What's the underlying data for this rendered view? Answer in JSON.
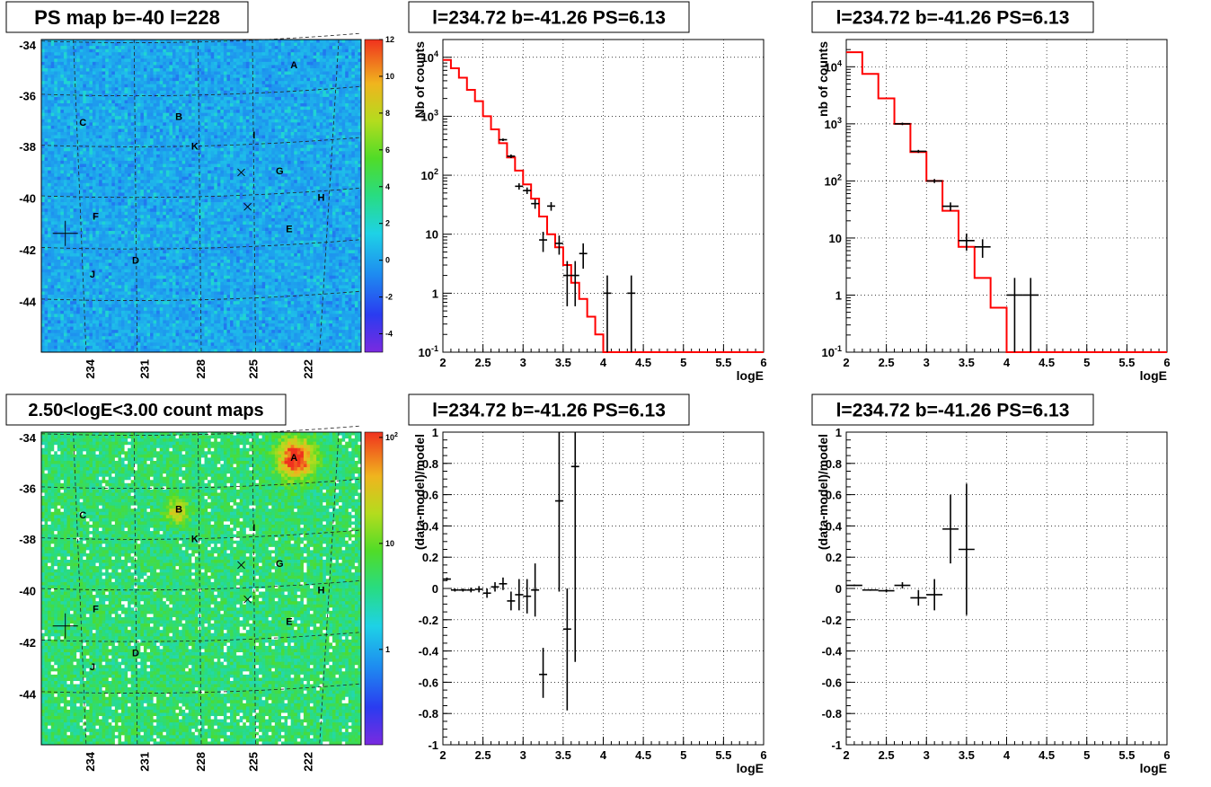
{
  "chart_data": [
    {
      "id": "map_ps",
      "type": "heatmap",
      "title": "PS map b=-40 l=228",
      "y_ticks": [
        "-34",
        "-36",
        "-38",
        "-40",
        "-42",
        "-44"
      ],
      "x_ticks": [
        "234",
        "231",
        "228",
        "225",
        "222"
      ],
      "colorbar_ticks": [
        "12",
        "10",
        "8",
        "6",
        "4",
        "2",
        "0",
        "-2",
        "-4"
      ],
      "zlim": [
        -5,
        12
      ],
      "colorbar_scale": "linear",
      "sources": [
        "A",
        "B",
        "C",
        "D",
        "E",
        "F",
        "G",
        "H",
        "I",
        "J",
        "K"
      ]
    },
    {
      "id": "spec_left",
      "type": "line",
      "title": "l=234.72 b=-41.26 PS=6.13",
      "xlabel": "logE",
      "ylabel": "Nb of counts",
      "y_scale": "log",
      "xlim": [
        2,
        6
      ],
      "ylim": [
        0.1,
        20000
      ],
      "x_ticks": [
        "2",
        "2.5",
        "3",
        "3.5",
        "4",
        "4.5",
        "5",
        "5.5",
        "6"
      ],
      "y_ticks": [
        "10^-1",
        "1",
        "10",
        "10^2",
        "10^3",
        "10^4"
      ],
      "grid": true,
      "model": {
        "bin_width": 0.1,
        "bin_starts": [
          2.0,
          2.1,
          2.2,
          2.3,
          2.4,
          2.5,
          2.6,
          2.7,
          2.8,
          2.9,
          3.0,
          3.1,
          3.2,
          3.3,
          3.4,
          3.5,
          3.6,
          3.7,
          3.8,
          3.9,
          4.0,
          4.1
        ],
        "values": [
          9000,
          6500,
          4500,
          2800,
          1800,
          1000,
          600,
          350,
          200,
          120,
          70,
          40,
          20,
          10,
          6,
          3,
          1.5,
          0.8,
          0.4,
          0.2,
          0.1,
          0.1
        ]
      },
      "data": {
        "points": [
          {
            "x": 2.75,
            "y": 400,
            "xerr": 0.05,
            "ylo": 380,
            "yhi": 420
          },
          {
            "x": 2.85,
            "y": 210,
            "xerr": 0.05,
            "ylo": 195,
            "yhi": 225
          },
          {
            "x": 2.95,
            "y": 65,
            "xerr": 0.05,
            "ylo": 57,
            "yhi": 73
          },
          {
            "x": 3.05,
            "y": 55,
            "xerr": 0.05,
            "ylo": 48,
            "yhi": 62
          },
          {
            "x": 3.15,
            "y": 33,
            "xerr": 0.05,
            "ylo": 27,
            "yhi": 39
          },
          {
            "x": 3.25,
            "y": 8,
            "xerr": 0.05,
            "ylo": 5,
            "yhi": 11
          },
          {
            "x": 3.35,
            "y": 30,
            "xerr": 0.05,
            "ylo": 25,
            "yhi": 35
          },
          {
            "x": 3.45,
            "y": 7,
            "xerr": 0.05,
            "ylo": 4.5,
            "yhi": 9.5
          },
          {
            "x": 3.55,
            "y": 2,
            "xerr": 0.05,
            "ylo": 0.6,
            "yhi": 3.5
          },
          {
            "x": 3.65,
            "y": 2,
            "xerr": 0.05,
            "ylo": 0.6,
            "yhi": 3.5
          },
          {
            "x": 3.75,
            "y": 4.7,
            "xerr": 0.05,
            "ylo": 2.6,
            "yhi": 7
          },
          {
            "x": 4.05,
            "y": 1,
            "xerr": 0.05,
            "ylo": 0.1,
            "yhi": 2
          },
          {
            "x": 4.35,
            "y": 1,
            "xerr": 0.05,
            "ylo": 0.1,
            "yhi": 2
          }
        ]
      }
    },
    {
      "id": "spec_right",
      "type": "line",
      "title": "l=234.72 b=-41.26 PS=6.13",
      "xlabel": "logE",
      "ylabel": "nb of counts",
      "y_scale": "log",
      "xlim": [
        2,
        6
      ],
      "ylim": [
        0.1,
        30000
      ],
      "x_ticks": [
        "2",
        "2.5",
        "3",
        "3.5",
        "4",
        "4.5",
        "5",
        "5.5",
        "6"
      ],
      "y_ticks": [
        "10^-1",
        "1",
        "10",
        "10^2",
        "10^3",
        "10^4"
      ],
      "grid": true,
      "model": {
        "bin_width": 0.2,
        "bin_starts": [
          2.0,
          2.2,
          2.4,
          2.6,
          2.8,
          3.0,
          3.2,
          3.4,
          3.6,
          3.8,
          4.0,
          4.2
        ],
        "values": [
          18000,
          7500,
          2800,
          1000,
          320,
          100,
          30,
          7,
          2,
          0.6,
          0.1,
          0.1
        ]
      },
      "data": {
        "points": [
          {
            "x": 2.7,
            "y": 1000,
            "xerr": 0.1,
            "ylo": 950,
            "yhi": 1050
          },
          {
            "x": 2.9,
            "y": 330,
            "xerr": 0.1,
            "ylo": 310,
            "yhi": 350
          },
          {
            "x": 3.1,
            "y": 100,
            "xerr": 0.1,
            "ylo": 92,
            "yhi": 108
          },
          {
            "x": 3.3,
            "y": 36,
            "xerr": 0.1,
            "ylo": 30,
            "yhi": 42
          },
          {
            "x": 3.5,
            "y": 9,
            "xerr": 0.1,
            "ylo": 6,
            "yhi": 12
          },
          {
            "x": 3.7,
            "y": 7,
            "xerr": 0.1,
            "ylo": 4.5,
            "yhi": 9.5
          },
          {
            "x": 4.1,
            "y": 1,
            "xerr": 0.1,
            "ylo": 0.1,
            "yhi": 2
          },
          {
            "x": 4.3,
            "y": 1,
            "xerr": 0.1,
            "ylo": 0.1,
            "yhi": 2
          }
        ]
      }
    },
    {
      "id": "map_counts",
      "type": "heatmap",
      "title": "2.50<logE<3.00 count maps",
      "y_ticks": [
        "-34",
        "-36",
        "-38",
        "-40",
        "-42",
        "-44"
      ],
      "x_ticks": [
        "234",
        "231",
        "228",
        "225",
        "222"
      ],
      "colorbar_ticks": [
        "10^2",
        "10",
        "1"
      ],
      "colorbar_scale": "log",
      "sources": [
        "A",
        "B",
        "C",
        "D",
        "E",
        "F",
        "G",
        "H",
        "I",
        "J",
        "K"
      ]
    },
    {
      "id": "resid_left",
      "type": "scatter",
      "title": "l=234.72 b=-41.26 PS=6.13",
      "xlabel": "logE",
      "ylabel": "(data-model)/model",
      "xlim": [
        2,
        6
      ],
      "ylim": [
        -1,
        1
      ],
      "x_ticks": [
        "2",
        "2.5",
        "3",
        "3.5",
        "4",
        "4.5",
        "5",
        "5.5",
        "6"
      ],
      "y_ticks": [
        "1",
        "0.8",
        "0.6",
        "0.4",
        "0.2",
        "0",
        "-0.2",
        "-0.4",
        "-0.6",
        "-0.8",
        "-1"
      ],
      "grid": true,
      "points": [
        {
          "x": 2.05,
          "y": 0.06,
          "xerr": 0.05,
          "ylo": 0.05,
          "yhi": 0.07
        },
        {
          "x": 2.15,
          "y": -0.01,
          "xerr": 0.05,
          "ylo": -0.02,
          "yhi": 0.0
        },
        {
          "x": 2.25,
          "y": -0.01,
          "xerr": 0.05,
          "ylo": -0.02,
          "yhi": 0.0
        },
        {
          "x": 2.35,
          "y": -0.01,
          "xerr": 0.05,
          "ylo": -0.025,
          "yhi": 0.005
        },
        {
          "x": 2.45,
          "y": -0.005,
          "xerr": 0.05,
          "ylo": -0.025,
          "yhi": 0.015
        },
        {
          "x": 2.55,
          "y": -0.03,
          "xerr": 0.05,
          "ylo": -0.06,
          "yhi": 0.0
        },
        {
          "x": 2.65,
          "y": 0.01,
          "xerr": 0.05,
          "ylo": -0.02,
          "yhi": 0.04
        },
        {
          "x": 2.75,
          "y": 0.03,
          "xerr": 0.05,
          "ylo": -0.01,
          "yhi": 0.07
        },
        {
          "x": 2.85,
          "y": -0.08,
          "xerr": 0.05,
          "ylo": -0.14,
          "yhi": -0.02
        },
        {
          "x": 2.95,
          "y": -0.04,
          "xerr": 0.05,
          "ylo": -0.14,
          "yhi": 0.06
        },
        {
          "x": 3.05,
          "y": -0.05,
          "xerr": 0.05,
          "ylo": -0.16,
          "yhi": 0.06
        },
        {
          "x": 3.15,
          "y": -0.01,
          "xerr": 0.05,
          "ylo": -0.18,
          "yhi": 0.16
        },
        {
          "x": 3.25,
          "y": -0.55,
          "xerr": 0.05,
          "ylo": -0.7,
          "yhi": -0.38
        },
        {
          "x": 3.45,
          "y": 0.56,
          "xerr": 0.05,
          "ylo": -0.02,
          "yhi": 1.0
        },
        {
          "x": 3.55,
          "y": -0.26,
          "xerr": 0.05,
          "ylo": -0.78,
          "yhi": 0.0
        },
        {
          "x": 3.65,
          "y": 0.78,
          "xerr": 0.05,
          "ylo": -0.47,
          "yhi": 1.0
        }
      ]
    },
    {
      "id": "resid_right",
      "type": "scatter",
      "title": "l=234.72 b=-41.26 PS=6.13",
      "xlabel": "logE",
      "ylabel": "(data-model)/model",
      "xlim": [
        2,
        6
      ],
      "ylim": [
        -1,
        1
      ],
      "x_ticks": [
        "2",
        "2.5",
        "3",
        "3.5",
        "4",
        "4.5",
        "5",
        "5.5",
        "6"
      ],
      "y_ticks": [
        "1",
        "0.8",
        "0.6",
        "0.4",
        "0.2",
        "0",
        "-0.2",
        "-0.4",
        "-0.6",
        "-0.8",
        "-1"
      ],
      "grid": true,
      "points": [
        {
          "x": 2.1,
          "y": 0.02,
          "xerr": 0.1,
          "ylo": 0.015,
          "yhi": 0.025
        },
        {
          "x": 2.3,
          "y": -0.01,
          "xerr": 0.1,
          "ylo": -0.015,
          "yhi": -0.005
        },
        {
          "x": 2.5,
          "y": -0.015,
          "xerr": 0.1,
          "ylo": -0.025,
          "yhi": -0.005
        },
        {
          "x": 2.7,
          "y": 0.02,
          "xerr": 0.1,
          "ylo": 0.0,
          "yhi": 0.04
        },
        {
          "x": 2.9,
          "y": -0.06,
          "xerr": 0.1,
          "ylo": -0.11,
          "yhi": -0.01
        },
        {
          "x": 3.1,
          "y": -0.04,
          "xerr": 0.1,
          "ylo": -0.14,
          "yhi": 0.06
        },
        {
          "x": 3.3,
          "y": 0.38,
          "xerr": 0.1,
          "ylo": 0.16,
          "yhi": 0.6
        },
        {
          "x": 3.5,
          "y": 0.25,
          "xerr": 0.1,
          "ylo": -0.17,
          "yhi": 0.67
        }
      ]
    }
  ]
}
